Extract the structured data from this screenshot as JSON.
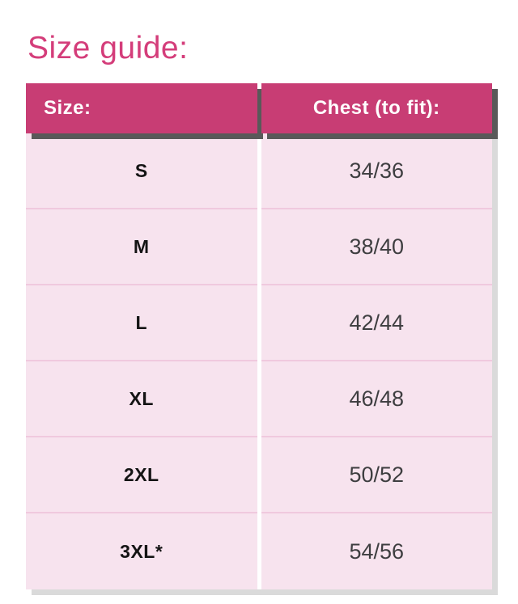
{
  "page": {
    "title": "Size guide:"
  },
  "size_table": {
    "headers": {
      "size": "Size:",
      "chest": "Chest (to fit):"
    },
    "rows": [
      {
        "size": "S",
        "chest": "34/36"
      },
      {
        "size": "M",
        "chest": "38/40"
      },
      {
        "size": "L",
        "chest": "42/44"
      },
      {
        "size": "XL",
        "chest": "46/48"
      },
      {
        "size": "2XL",
        "chest": "50/52"
      },
      {
        "size": "3XL*",
        "chest": "54/56"
      }
    ]
  },
  "colors": {
    "title_pink": "#d43d7a",
    "header_bg_pink": "#c83d74",
    "header_text": "#ffffff",
    "row_bg_pink": "#f7e3ee",
    "row_divider_pink": "#f0c9de",
    "header_shadow_gray": "#595959",
    "body_shadow_gray": "#dadada",
    "size_text": "#141414",
    "value_text": "#3e3e40"
  }
}
